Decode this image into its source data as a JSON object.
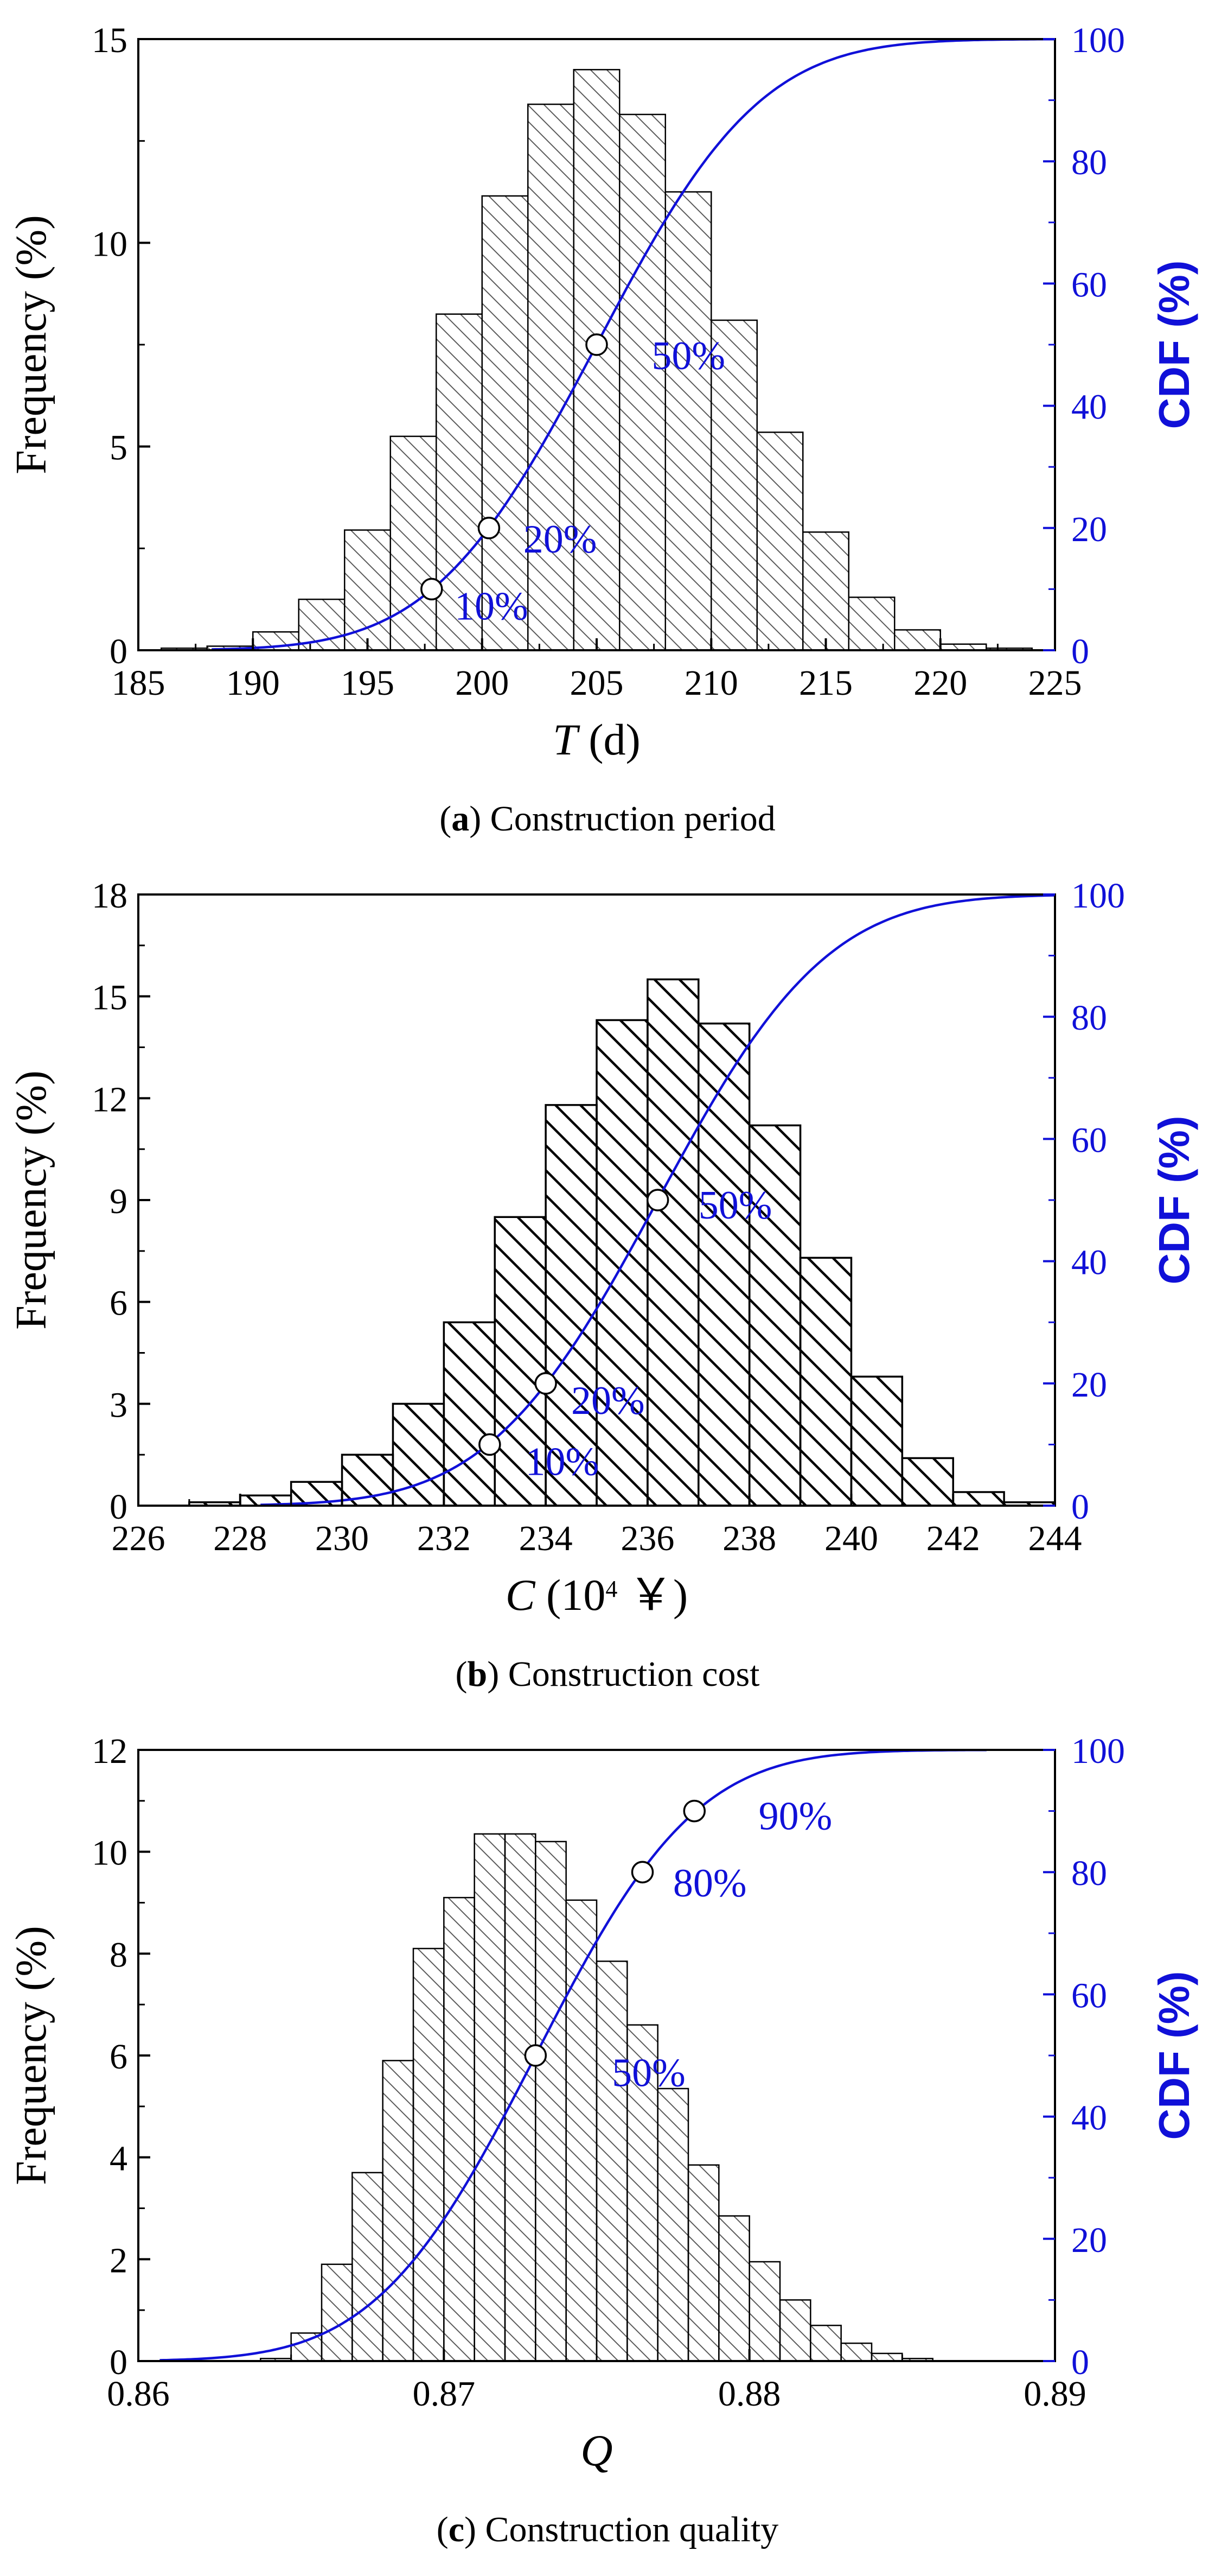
{
  "chart_data": [
    {
      "type": "bar",
      "panel_label": "a",
      "caption_text": "Construction period",
      "xlabel_symbol": "T",
      "xlabel_unit": " (d)",
      "ylabel": "Frequency (%)",
      "y2label": "CDF (%)",
      "xlim": [
        185,
        225
      ],
      "ylim": [
        0,
        15
      ],
      "y2lim": [
        0,
        100
      ],
      "xticks": [
        "185",
        "190",
        "195",
        "200",
        "205",
        "210",
        "215",
        "220",
        "225"
      ],
      "yticks": [
        "0",
        "5",
        "10",
        "15"
      ],
      "y2ticks": [
        "0",
        "20",
        "40",
        "60",
        "80",
        "100"
      ],
      "bin_start": 186,
      "bin_width": 2,
      "values": [
        0.05,
        0.1,
        0.45,
        1.25,
        2.95,
        5.25,
        8.25,
        11.15,
        13.4,
        14.25,
        13.15,
        11.25,
        8.1,
        5.35,
        2.9,
        1.3,
        0.5,
        0.15,
        0.05
      ],
      "hatch": "light",
      "cdf": {
        "mean": 205,
        "std": 5.6
      },
      "cdf_markers": [
        {
          "x": 197.8,
          "y": 10,
          "label": "10%"
        },
        {
          "x": 200.3,
          "y": 20,
          "label": "20%"
        },
        {
          "x": 205.0,
          "y": 50,
          "label": "50%"
        }
      ],
      "cdf_label_positions": [
        {
          "x": 198.8,
          "y": 5
        },
        {
          "x": 201.8,
          "y": 16
        },
        {
          "x": 207.4,
          "y": 46
        }
      ]
    },
    {
      "type": "bar",
      "panel_label": "b",
      "caption_text": "Construction cost",
      "xlabel_symbol": "C",
      "xlabel_unit": " (10",
      "xlabel_sup": "4",
      "xlabel_tail": " ￥)",
      "ylabel": "Frequency (%)",
      "y2label": "CDF (%)",
      "xlim": [
        226,
        244
      ],
      "ylim": [
        0,
        18
      ],
      "y2lim": [
        0,
        100
      ],
      "xticks": [
        "226",
        "228",
        "230",
        "232",
        "234",
        "236",
        "238",
        "240",
        "242",
        "244"
      ],
      "yticks": [
        "0",
        "3",
        "6",
        "9",
        "12",
        "15",
        "18"
      ],
      "y2ticks": [
        "0",
        "20",
        "40",
        "60",
        "80",
        "100"
      ],
      "bin_start": 227,
      "bin_width": 1,
      "values": [
        0.1,
        0.3,
        0.7,
        1.5,
        3.0,
        5.4,
        8.5,
        11.8,
        14.3,
        15.5,
        14.2,
        11.2,
        7.3,
        3.8,
        1.4,
        0.4,
        0.1
      ],
      "hatch": "dark",
      "cdf": {
        "mean": 236.2,
        "std": 2.6
      },
      "cdf_markers": [
        {
          "x": 232.9,
          "y": 10,
          "label": "10%"
        },
        {
          "x": 234.0,
          "y": 20,
          "label": "20%"
        },
        {
          "x": 236.2,
          "y": 50,
          "label": "50%"
        }
      ],
      "cdf_label_positions": [
        {
          "x": 233.6,
          "y": 5
        },
        {
          "x": 234.5,
          "y": 15
        },
        {
          "x": 237.0,
          "y": 47
        }
      ]
    },
    {
      "type": "bar",
      "panel_label": "c",
      "caption_text": "Construction quality",
      "xlabel_symbol": "Q",
      "xlabel_unit": "",
      "ylabel": "Frequency (%)",
      "y2label": "CDF (%)",
      "xlim": [
        0.86,
        0.89
      ],
      "ylim": [
        0,
        12
      ],
      "y2lim": [
        0,
        100
      ],
      "xticks": [
        "0.86",
        "0.87",
        "0.88",
        "0.89"
      ],
      "yticks": [
        "0",
        "2",
        "4",
        "6",
        "8",
        "10",
        "12"
      ],
      "y2ticks": [
        "0",
        "20",
        "40",
        "60",
        "80",
        "100"
      ],
      "bin_start": 0.864,
      "bin_width": 0.001,
      "values": [
        0.05,
        0.55,
        1.9,
        3.7,
        5.9,
        8.1,
        9.1,
        10.35,
        10.35,
        10.2,
        9.05,
        7.85,
        6.6,
        5.35,
        3.85,
        2.85,
        1.95,
        1.2,
        0.7,
        0.35,
        0.15,
        0.05
      ],
      "hatch": "light",
      "cdf": {
        "mean": 0.873,
        "std": 0.0041
      },
      "cdf_markers": [
        {
          "x": 0.873,
          "y": 50,
          "label": "50%"
        },
        {
          "x": 0.8765,
          "y": 80,
          "label": "80%"
        },
        {
          "x": 0.8782,
          "y": 90,
          "label": "90%"
        }
      ],
      "cdf_label_positions": [
        {
          "x": 0.8755,
          "y": 45
        },
        {
          "x": 0.8775,
          "y": 76
        },
        {
          "x": 0.8803,
          "y": 87
        }
      ]
    }
  ]
}
